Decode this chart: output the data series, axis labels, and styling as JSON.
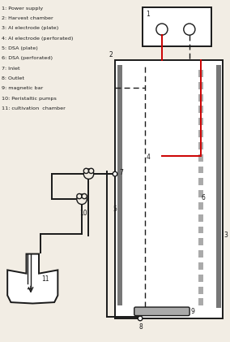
{
  "legend_lines": [
    "1: Power supply",
    "2: Harvest chamber",
    "3: Al electrode (plate)",
    "4: Al electrode (perforated)",
    "5: DSA (plate)",
    "6: DSA (perforated)",
    "7: Inlet",
    "8: Outlet",
    "9: magnetic bar",
    "10: Peristaltic pumps",
    "11: cultivation  chamber"
  ],
  "bg_color": "#f2ede4",
  "black": "#1a1a1a",
  "red": "#cc0000",
  "gray": "#777777",
  "light_gray": "#aaaaaa",
  "xlim": [
    0,
    10
  ],
  "ylim": [
    0,
    14.8
  ]
}
